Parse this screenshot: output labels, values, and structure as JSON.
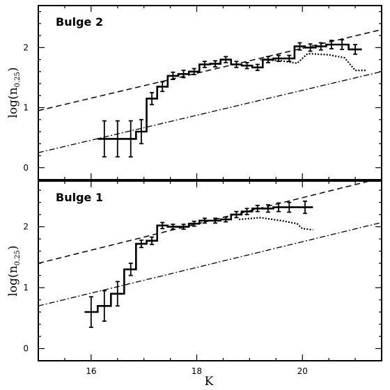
{
  "chart_data": [
    {
      "type": "line",
      "label": "Bulge 2",
      "xlabel": "K",
      "ylabel_main": "log(n",
      "ylabel_sub": "0.25",
      "ylabel_close": ")",
      "xlim": [
        15.0,
        21.5
      ],
      "ylim": [
        -0.2,
        2.7
      ],
      "x_ticks": [
        16,
        18,
        20
      ],
      "x_tick_labels": [
        "",
        "",
        ""
      ],
      "y_ticks": [
        0,
        1,
        2
      ],
      "y_tick_labels": [
        "0",
        "1",
        "2"
      ],
      "histogram": [
        {
          "x": 16.25,
          "y": 0.48,
          "err": 0.3,
          "xerr": 0.25
        },
        {
          "x": 16.5,
          "y": 0.48,
          "err": 0.3
        },
        {
          "x": 16.75,
          "y": 0.48,
          "err": 0.3
        },
        {
          "x": 16.95,
          "y": 0.6,
          "err": 0.2
        },
        {
          "x": 17.15,
          "y": 1.15,
          "err": 0.1
        },
        {
          "x": 17.35,
          "y": 1.35,
          "err": 0.08
        },
        {
          "x": 17.55,
          "y": 1.53,
          "err": 0.06
        },
        {
          "x": 17.75,
          "y": 1.56,
          "err": 0.06
        },
        {
          "x": 17.95,
          "y": 1.6,
          "err": 0.05
        },
        {
          "x": 18.15,
          "y": 1.72,
          "err": 0.05
        },
        {
          "x": 18.35,
          "y": 1.73,
          "err": 0.05
        },
        {
          "x": 18.55,
          "y": 1.8,
          "err": 0.05
        },
        {
          "x": 18.75,
          "y": 1.72,
          "err": 0.05
        },
        {
          "x": 18.95,
          "y": 1.7,
          "err": 0.05
        },
        {
          "x": 19.15,
          "y": 1.67,
          "err": 0.05
        },
        {
          "x": 19.35,
          "y": 1.8,
          "err": 0.05
        },
        {
          "x": 19.55,
          "y": 1.82,
          "err": 0.05
        },
        {
          "x": 19.75,
          "y": 1.82,
          "err": 0.05
        },
        {
          "x": 19.95,
          "y": 2.02,
          "err": 0.06
        },
        {
          "x": 20.15,
          "y": 2.0,
          "err": 0.06
        },
        {
          "x": 20.35,
          "y": 2.02,
          "err": 0.06
        },
        {
          "x": 20.55,
          "y": 2.05,
          "err": 0.07
        },
        {
          "x": 20.75,
          "y": 2.05,
          "err": 0.08
        },
        {
          "x": 21.0,
          "y": 1.97,
          "err": 0.08
        }
      ],
      "dotted_curve": [
        {
          "x": 19.2,
          "y": 1.8
        },
        {
          "x": 19.6,
          "y": 1.78
        },
        {
          "x": 19.9,
          "y": 1.74
        },
        {
          "x": 20.1,
          "y": 1.9
        },
        {
          "x": 20.5,
          "y": 1.88
        },
        {
          "x": 20.8,
          "y": 1.83
        },
        {
          "x": 21.0,
          "y": 1.62
        },
        {
          "x": 21.2,
          "y": 1.62
        }
      ],
      "dashed_line": [
        {
          "x": 15.0,
          "y": 0.95
        },
        {
          "x": 21.5,
          "y": 2.3
        }
      ],
      "dashdot_line": [
        {
          "x": 15.0,
          "y": 0.25
        },
        {
          "x": 21.5,
          "y": 1.6
        }
      ]
    },
    {
      "type": "line",
      "label": "Bulge 1",
      "xlabel": "K",
      "ylabel_main": "log(n",
      "ylabel_sub": "0.25",
      "ylabel_close": ")",
      "xlim": [
        15.0,
        21.5
      ],
      "ylim": [
        -0.2,
        2.75
      ],
      "x_ticks": [
        16,
        18,
        20
      ],
      "x_tick_labels": [
        "16",
        "18",
        "20"
      ],
      "y_ticks": [
        0,
        1,
        2
      ],
      "y_tick_labels": [
        "0",
        "1",
        "2"
      ],
      "histogram": [
        {
          "x": 16.0,
          "y": 0.6,
          "err": 0.25
        },
        {
          "x": 16.25,
          "y": 0.7,
          "err": 0.25
        },
        {
          "x": 16.5,
          "y": 0.9,
          "err": 0.2
        },
        {
          "x": 16.75,
          "y": 1.3,
          "err": 0.1
        },
        {
          "x": 16.95,
          "y": 1.72,
          "err": 0.06
        },
        {
          "x": 17.15,
          "y": 1.77,
          "err": 0.06
        },
        {
          "x": 17.35,
          "y": 2.02,
          "err": 0.05
        },
        {
          "x": 17.55,
          "y": 2.0,
          "err": 0.04
        },
        {
          "x": 17.75,
          "y": 2.0,
          "err": 0.04
        },
        {
          "x": 17.95,
          "y": 2.05,
          "err": 0.04
        },
        {
          "x": 18.15,
          "y": 2.1,
          "err": 0.04
        },
        {
          "x": 18.35,
          "y": 2.1,
          "err": 0.04
        },
        {
          "x": 18.55,
          "y": 2.12,
          "err": 0.04
        },
        {
          "x": 18.75,
          "y": 2.2,
          "err": 0.05
        },
        {
          "x": 18.95,
          "y": 2.25,
          "err": 0.05
        },
        {
          "x": 19.15,
          "y": 2.3,
          "err": 0.05
        },
        {
          "x": 19.35,
          "y": 2.3,
          "err": 0.06
        },
        {
          "x": 19.55,
          "y": 2.32,
          "err": 0.07
        },
        {
          "x": 19.75,
          "y": 2.32,
          "err": 0.08
        },
        {
          "x": 20.05,
          "y": 2.32,
          "err": 0.1
        }
      ],
      "dotted_curve": [
        {
          "x": 18.8,
          "y": 2.12
        },
        {
          "x": 19.2,
          "y": 2.15
        },
        {
          "x": 19.6,
          "y": 2.1
        },
        {
          "x": 19.9,
          "y": 2.05
        },
        {
          "x": 20.0,
          "y": 1.97
        },
        {
          "x": 20.2,
          "y": 1.95
        }
      ],
      "dashed_line": [
        {
          "x": 15.0,
          "y": 1.4
        },
        {
          "x": 21.5,
          "y": 2.8
        }
      ],
      "dashdot_line": [
        {
          "x": 15.0,
          "y": 0.7
        },
        {
          "x": 21.5,
          "y": 2.07
        }
      ]
    }
  ]
}
